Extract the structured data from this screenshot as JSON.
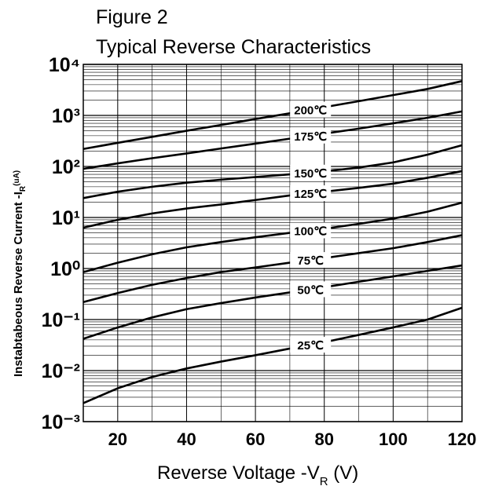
{
  "chart_data": {
    "type": "line",
    "title": "Figure 2",
    "subtitle": "Typical Reverse Characteristics",
    "x_label": {
      "text": "Reverse  Voltage -V",
      "sub": "R",
      "unit": " (V)"
    },
    "y_label": {
      "text": "Instabtabeous Reverse Current -I",
      "sub": "R",
      "unit": "(uA)"
    },
    "x": [
      10,
      20,
      30,
      40,
      50,
      60,
      70,
      80,
      90,
      100,
      110,
      120
    ],
    "series": [
      {
        "name": "200℃",
        "color": "#000000",
        "values": [
          220,
          290,
          380,
          500,
          650,
          850,
          1100,
          1450,
          1900,
          2500,
          3300,
          4700
        ]
      },
      {
        "name": "175℃",
        "color": "#000000",
        "values": [
          90,
          115,
          145,
          180,
          225,
          280,
          350,
          440,
          550,
          700,
          900,
          1200
        ]
      },
      {
        "name": "150℃",
        "color": "#000000",
        "values": [
          24,
          32,
          40,
          48,
          55,
          62,
          70,
          80,
          95,
          120,
          170,
          260
        ]
      },
      {
        "name": "125℃",
        "color": "#000000",
        "values": [
          6.3,
          9,
          12,
          15,
          18,
          22,
          27,
          32,
          38,
          46,
          60,
          81
        ]
      },
      {
        "name": "100℃",
        "color": "#000000",
        "values": [
          0.85,
          1.3,
          1.9,
          2.6,
          3.3,
          4.1,
          5,
          6,
          7.5,
          9.5,
          13,
          19.5
        ]
      },
      {
        "name": "75℃",
        "color": "#000000",
        "values": [
          0.22,
          0.33,
          0.48,
          0.65,
          0.85,
          1.05,
          1.3,
          1.6,
          2,
          2.5,
          3.3,
          4.5
        ]
      },
      {
        "name": "50℃",
        "color": "#000000",
        "values": [
          0.042,
          0.07,
          0.11,
          0.16,
          0.21,
          0.27,
          0.34,
          0.43,
          0.55,
          0.7,
          0.9,
          1.15
        ]
      },
      {
        "name": "25℃",
        "color": "#000000",
        "values": [
          0.0023,
          0.0045,
          0.0075,
          0.011,
          0.015,
          0.02,
          0.027,
          0.036,
          0.05,
          0.07,
          0.1,
          0.17
        ]
      }
    ],
    "xlim": [
      10,
      120
    ],
    "xticks": [
      20,
      40,
      60,
      80,
      100,
      120
    ],
    "ylim": [
      0.001,
      10000
    ],
    "log_y": true,
    "yticks": [
      {
        "value": 0.001,
        "label": "10⁻³"
      },
      {
        "value": 0.01,
        "label": "10⁻²"
      },
      {
        "value": 0.1,
        "label": "10⁻¹"
      },
      {
        "value": 1,
        "label": "10⁰"
      },
      {
        "value": 10,
        "label": "10¹"
      },
      {
        "value": 100,
        "label": "10²"
      },
      {
        "value": 1000,
        "label": "10³"
      },
      {
        "value": 10000,
        "label": "10⁴"
      }
    ],
    "grid": true
  }
}
